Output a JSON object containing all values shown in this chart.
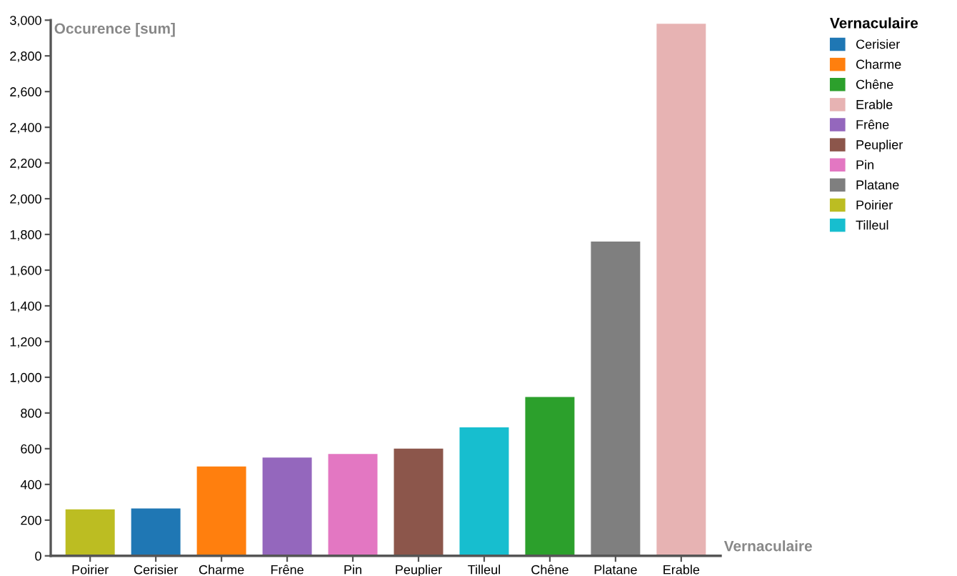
{
  "chart_data": {
    "type": "bar",
    "xlabel": "Vernaculaire",
    "ylabel": "Occurence [sum]",
    "legend_title": "Vernaculaire",
    "categories": [
      "Poirier",
      "Cerisier",
      "Charme",
      "Frêne",
      "Pin",
      "Peuplier",
      "Tilleul",
      "Chêne",
      "Platane",
      "Erable"
    ],
    "series": [
      {
        "name": "Cerisier",
        "color": "#1f77b4",
        "values": [
          null,
          265,
          null,
          null,
          null,
          null,
          null,
          null,
          null,
          null
        ]
      },
      {
        "name": "Charme",
        "color": "#ff7f0e",
        "values": [
          null,
          null,
          500,
          null,
          null,
          null,
          null,
          null,
          null,
          null
        ]
      },
      {
        "name": "Chêne",
        "color": "#2ca02c",
        "values": [
          null,
          null,
          null,
          null,
          null,
          null,
          null,
          890,
          null,
          null
        ]
      },
      {
        "name": "Erable",
        "color": "#e7b3b3",
        "values": [
          null,
          null,
          null,
          null,
          null,
          null,
          null,
          null,
          null,
          2980
        ]
      },
      {
        "name": "Frêne",
        "color": "#9467bd",
        "values": [
          null,
          null,
          null,
          550,
          null,
          null,
          null,
          null,
          null,
          null
        ]
      },
      {
        "name": "Peuplier",
        "color": "#8c564b",
        "values": [
          null,
          null,
          null,
          null,
          null,
          600,
          null,
          null,
          null,
          null
        ]
      },
      {
        "name": "Pin",
        "color": "#e377c2",
        "values": [
          null,
          null,
          null,
          null,
          570,
          null,
          null,
          null,
          null,
          null
        ]
      },
      {
        "name": "Platane",
        "color": "#7f7f7f",
        "values": [
          null,
          null,
          null,
          null,
          null,
          null,
          null,
          null,
          1760,
          null
        ]
      },
      {
        "name": "Poirier",
        "color": "#bcbd22",
        "values": [
          260,
          null,
          null,
          null,
          null,
          null,
          null,
          null,
          null,
          null
        ]
      },
      {
        "name": "Tilleul",
        "color": "#17becf",
        "values": [
          null,
          null,
          null,
          null,
          null,
          null,
          720,
          null,
          null,
          null
        ]
      }
    ],
    "ylim": [
      0,
      3000
    ],
    "yticks": [
      0,
      200,
      400,
      600,
      800,
      {
        "value": 1000,
        "label": "1,000"
      },
      {
        "value": 1200,
        "label": "1,200"
      },
      {
        "value": 1400,
        "label": "1,400"
      },
      {
        "value": 1600,
        "label": "1,600"
      },
      {
        "value": 1800,
        "label": "1,800"
      },
      {
        "value": 2000,
        "label": "2,000"
      },
      {
        "value": 2200,
        "label": "2,200"
      },
      {
        "value": 2400,
        "label": "2,400"
      },
      {
        "value": 2600,
        "label": "2,600"
      },
      {
        "value": 2800,
        "label": "2,800"
      },
      {
        "value": 3000,
        "label": "3,000"
      }
    ],
    "grid": false,
    "legend": "top right"
  }
}
